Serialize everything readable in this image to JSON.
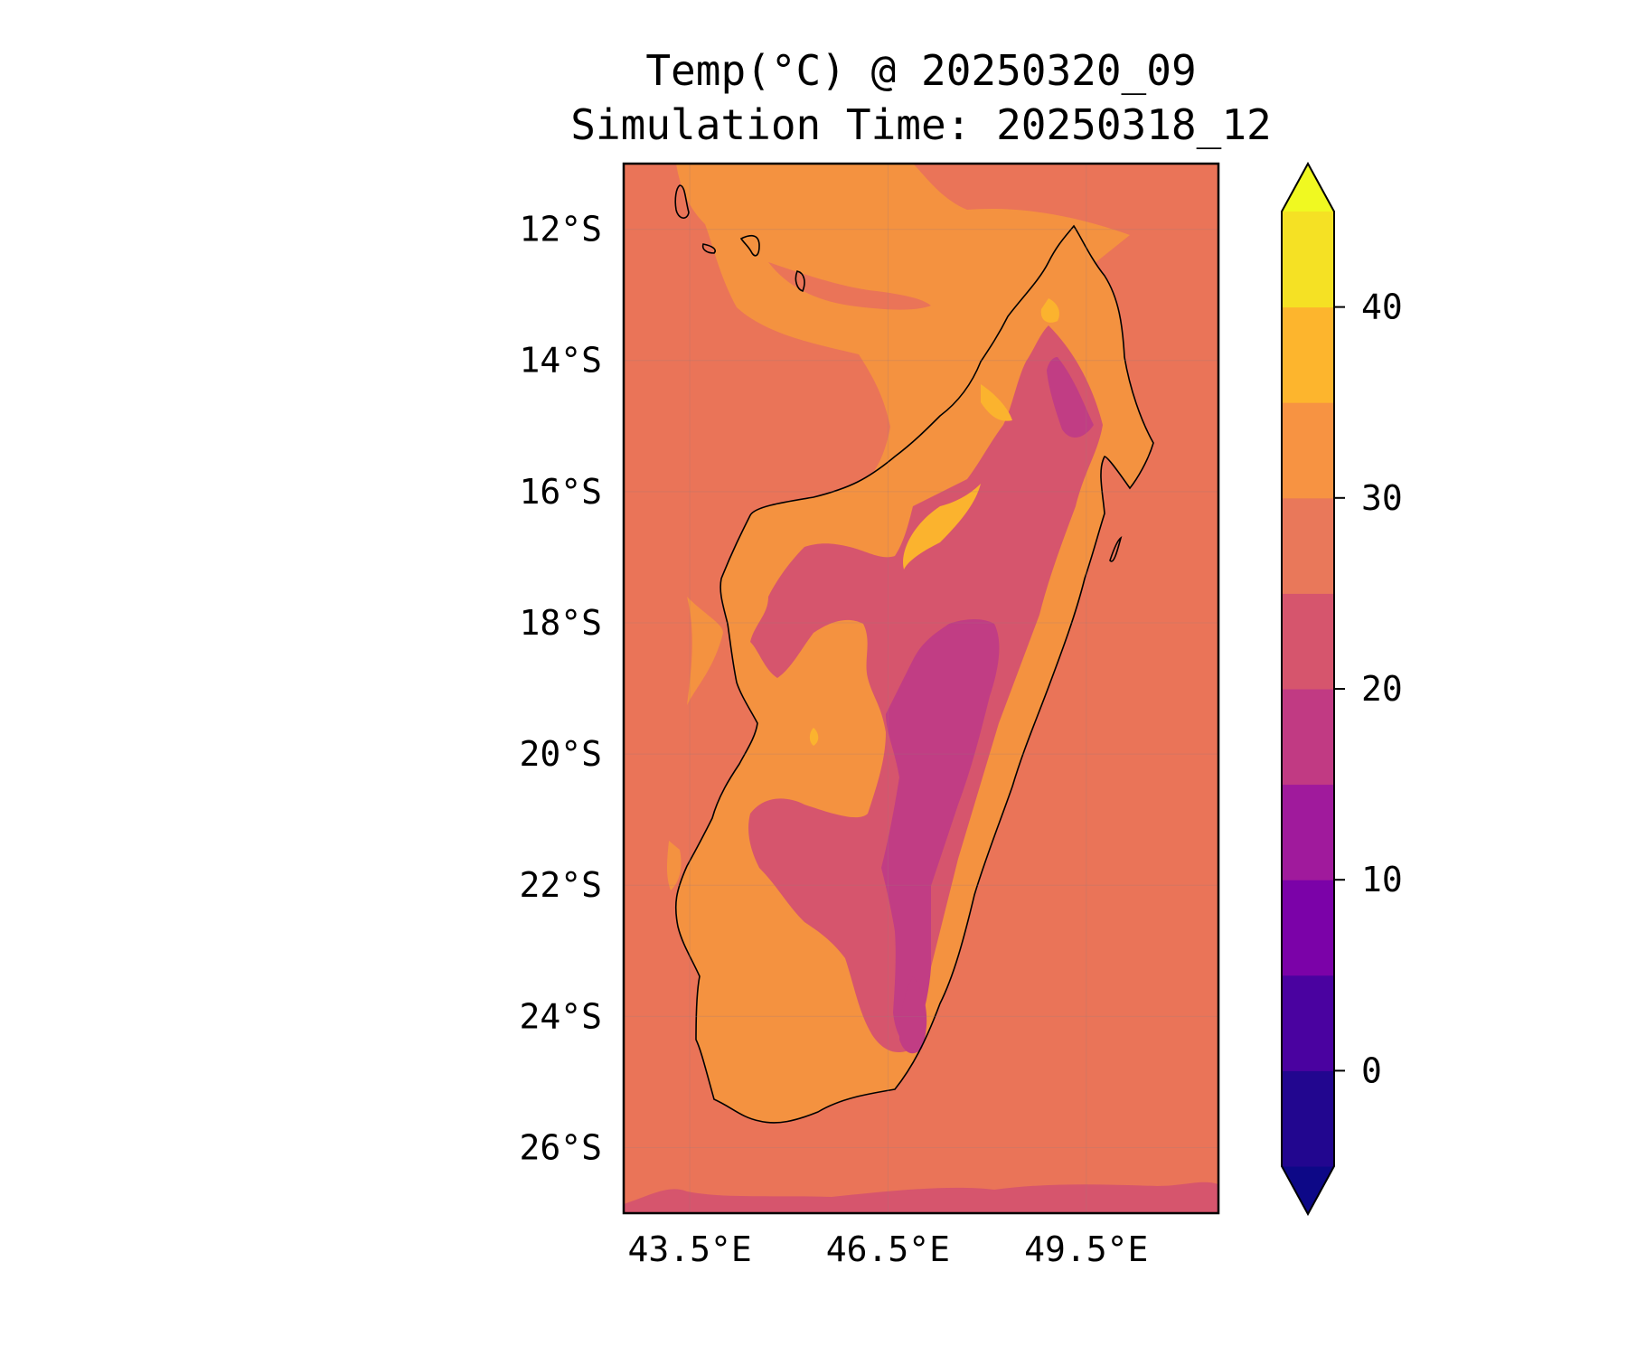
{
  "map": {
    "title": "Temp(°C) @ 20250320_09",
    "subtitle": "Simulation Time: 20250318_12",
    "lat_labels": [
      "12°S",
      "14°S",
      "16°S",
      "18°S",
      "20°S",
      "22°S",
      "24°S",
      "26°S"
    ],
    "lon_labels": [
      "43.5°E",
      "46.5°E",
      "49.5°E"
    ],
    "extent": {
      "lon_min": 42.5,
      "lon_max": 51.5,
      "lat_min": -27.0,
      "lat_max": -11.0
    },
    "lat_ticks": [
      -12,
      -14,
      -16,
      -18,
      -20,
      -22,
      -24,
      -26
    ],
    "lon_ticks": [
      43.5,
      46.5,
      49.5
    ],
    "gridlines": true
  },
  "colorbar": {
    "tick_labels": [
      "0",
      "10",
      "20",
      "30",
      "40"
    ],
    "tick_values": [
      0,
      10,
      20,
      30,
      40
    ],
    "levels": [
      -5,
      0,
      5,
      10,
      15,
      20,
      25,
      30,
      35,
      40,
      45
    ],
    "extend": "both",
    "colors": [
      "#0d0887",
      "#22068f",
      "#4a02a0",
      "#7b02a8",
      "#a01a9c",
      "#c13a83",
      "#d6556d",
      "#e9785a",
      "#f79342",
      "#fdb52d",
      "#f5e124",
      "#f0f921"
    ]
  },
  "colors": {
    "sea": "#ea7458",
    "land_warm": "#f49240",
    "land_hot": "#fbb32e",
    "land_mild": "#d6556d",
    "land_cool": "#c13d84",
    "coastline": "#000000"
  }
}
